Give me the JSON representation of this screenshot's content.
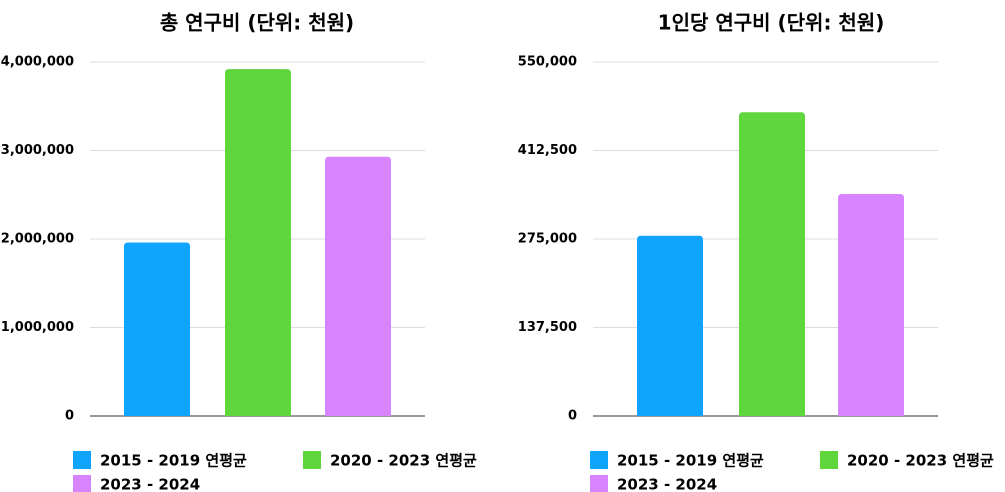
{
  "chart_data": [
    {
      "type": "bar",
      "title": "총 연구비 (단위: 천원)",
      "categories": [
        "2015 - 2019 연평균",
        "2020 - 2023 연평균",
        "2023 - 2024"
      ],
      "values": [
        1960000,
        3920000,
        2930000
      ],
      "colors": [
        "#0fa5ff",
        "#5ed63c",
        "#d883ff"
      ],
      "ylim": [
        0,
        4000000
      ],
      "yticks": [
        0,
        {
          "value": 1000000,
          "label": "1,000,000"
        },
        {
          "value": 2000000,
          "label": "2,000,000"
        },
        {
          "value": 3000000,
          "label": "3,000,000"
        },
        {
          "value": 4000000,
          "label": "4,000,000"
        }
      ],
      "grid": true
    },
    {
      "type": "bar",
      "title": "1인당 연구비 (단위: 천원)",
      "categories": [
        "2015 - 2019 연평균",
        "2020 - 2023 연평균",
        "2023 - 2024"
      ],
      "values": [
        280000,
        472000,
        345000
      ],
      "colors": [
        "#0fa5ff",
        "#5ed63c",
        "#d883ff"
      ],
      "ylim": [
        0,
        550000
      ],
      "yticks": [
        0,
        {
          "value": 137500,
          "label": "137,500"
        },
        {
          "value": 275000,
          "label": "275,000"
        },
        {
          "value": 412500,
          "label": "412,500"
        },
        {
          "value": 550000,
          "label": "550,000"
        }
      ],
      "grid": true
    }
  ]
}
